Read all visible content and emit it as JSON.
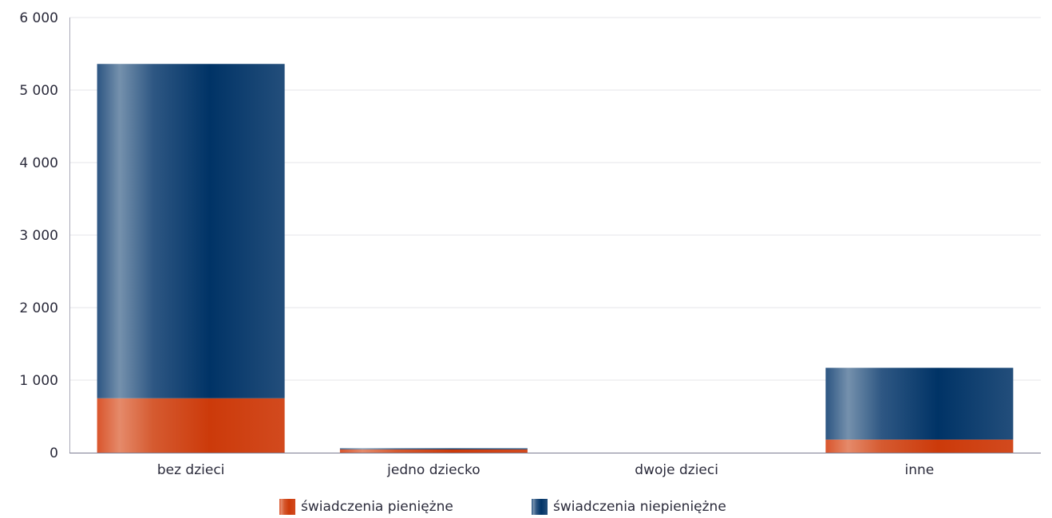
{
  "chart_data": {
    "type": "bar",
    "stacked": true,
    "categories": [
      "bez dzieci",
      "jedno dziecko",
      "dwoje dzieci",
      "inne"
    ],
    "series": [
      {
        "name": "świadczenia pieniężne",
        "values": [
          750,
          45,
          0,
          180
        ],
        "color": "#d24a1e"
      },
      {
        "name": "świadczenia niepieniężne",
        "values": [
          4610,
          15,
          0,
          990
        ],
        "color": "#1d4b7a"
      }
    ],
    "ylim": [
      0,
      6000
    ],
    "yticks": [
      0,
      1000,
      2000,
      3000,
      4000,
      5000,
      6000
    ],
    "ytick_labels": [
      "0",
      "1 000",
      "2 000",
      "3 000",
      "4 000",
      "5 000",
      "6 000"
    ],
    "grid": true,
    "legend_position": "bottom-center",
    "title": "",
    "xlabel": "",
    "ylabel": ""
  }
}
